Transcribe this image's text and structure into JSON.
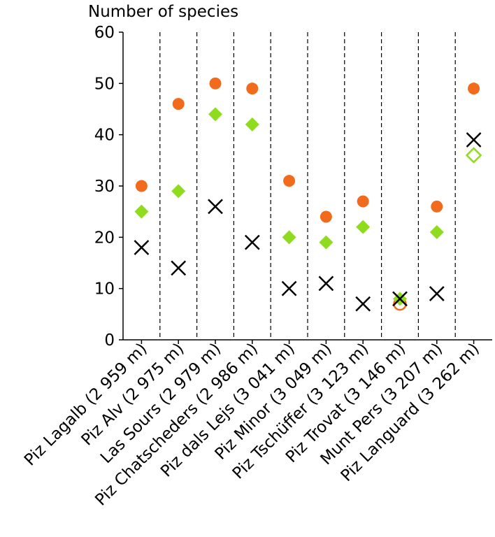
{
  "chart_data": {
    "type": "scatter",
    "ylabel": "Number of species",
    "ylim": [
      0,
      60
    ],
    "yticks": [
      0,
      10,
      20,
      30,
      40,
      50,
      60
    ],
    "grid": "vertical dashed separators between categories",
    "categories": [
      "Piz Lagalb (2 959 m)",
      "Piz Alv (2 975 m)",
      "Las Sours (2 979 m)",
      "Piz Chatscheders (2 986 m)",
      "Piz dals Lejs (3 041 m)",
      "Piz Minor (3 049 m)",
      "Piz Tschüffer (3 123 m)",
      "Piz Trovat (3 146 m)",
      "Munt Pers (3 207 m)",
      "Piz Languard (3 262 m)"
    ],
    "series": [
      {
        "marker": "circle",
        "color": "#f26a1b",
        "values": [
          30,
          46,
          50,
          49,
          31,
          24,
          27,
          7,
          26,
          49
        ],
        "hollow": [
          false,
          false,
          false,
          false,
          false,
          false,
          false,
          true,
          false,
          false
        ]
      },
      {
        "marker": "diamond",
        "color": "#8fdc1e",
        "values": [
          25,
          29,
          44,
          42,
          20,
          19,
          22,
          8,
          21,
          36
        ],
        "hollow": [
          false,
          false,
          false,
          false,
          false,
          false,
          false,
          false,
          false,
          true
        ]
      },
      {
        "marker": "cross",
        "color": "#000000",
        "values": [
          18,
          14,
          26,
          19,
          10,
          11,
          7,
          8,
          9,
          39
        ],
        "hollow": [
          false,
          false,
          false,
          false,
          false,
          false,
          false,
          false,
          false,
          false
        ]
      }
    ]
  }
}
